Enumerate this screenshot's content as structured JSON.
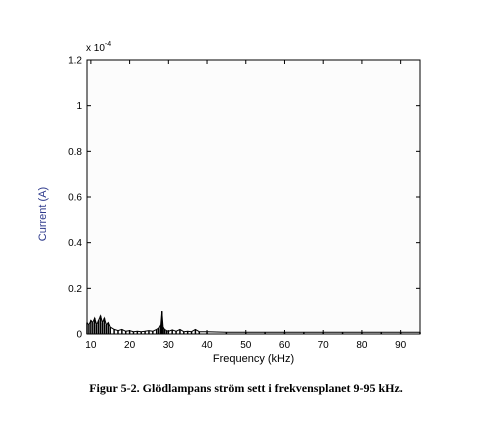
{
  "chart_data": {
    "type": "line",
    "title": "",
    "xlabel": "Frequency (kHz)",
    "ylabel": "Current (A)",
    "multiplier": "x 10",
    "multiplier_exp": "-4",
    "xlim": [
      9,
      95
    ],
    "ylim": [
      0,
      1.2
    ],
    "xticks": [
      10,
      20,
      30,
      40,
      50,
      60,
      70,
      80,
      90
    ],
    "xtick_labels": [
      "10",
      "20",
      "30",
      "40",
      "50",
      "60",
      "70",
      "80",
      "90"
    ],
    "yticks": [
      0,
      0.2,
      0.4,
      0.6,
      0.8,
      1,
      1.2
    ],
    "ytick_labels": [
      "0",
      "0.2",
      "0.4",
      "0.6",
      "0.8",
      "1",
      "1.2"
    ],
    "grid": false,
    "series": [
      {
        "color": "#000000",
        "x": [
          9,
          9.5,
          10,
          10.5,
          11,
          11.5,
          12,
          12.5,
          13,
          13.5,
          14,
          14.5,
          15,
          16,
          17,
          18,
          19,
          20,
          21,
          22,
          23,
          24,
          25,
          26,
          27,
          27.5,
          28,
          28.3,
          28.6,
          29,
          29.5,
          30,
          31,
          32,
          33,
          34,
          35,
          36,
          37,
          38,
          40,
          45,
          50,
          55,
          60,
          65,
          70,
          75,
          80,
          85,
          90,
          95
        ],
        "y": [
          0.05,
          0.04,
          0.06,
          0.05,
          0.07,
          0.04,
          0.06,
          0.08,
          0.05,
          0.07,
          0.04,
          0.05,
          0.03,
          0.02,
          0.015,
          0.02,
          0.012,
          0.015,
          0.01,
          0.012,
          0.01,
          0.012,
          0.015,
          0.012,
          0.02,
          0.025,
          0.04,
          0.1,
          0.03,
          0.02,
          0.015,
          0.012,
          0.018,
          0.012,
          0.02,
          0.01,
          0.012,
          0.01,
          0.02,
          0.01,
          0.01,
          0.008,
          0.008,
          0.008,
          0.008,
          0.008,
          0.008,
          0.008,
          0.008,
          0.008,
          0.008,
          0.008
        ]
      }
    ]
  },
  "caption": "Figur 5-2.  Glödlampans ström sett i frekvensplanet 9-95 kHz."
}
